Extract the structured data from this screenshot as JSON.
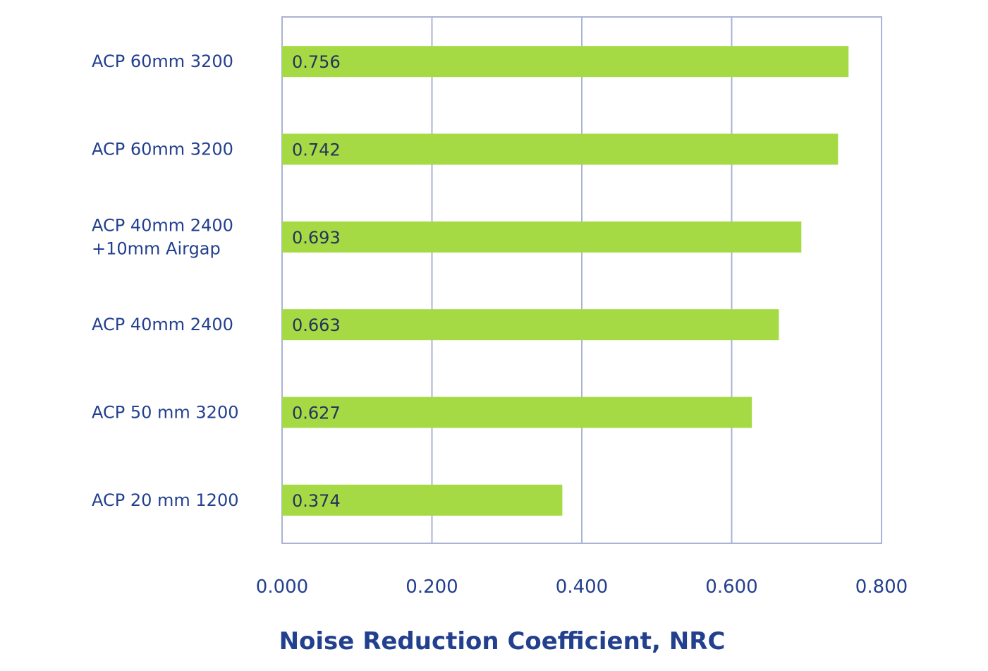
{
  "chart_data": {
    "type": "bar",
    "orientation": "horizontal",
    "categories": [
      [
        "ACP 60mm 3200"
      ],
      [
        "ACP 60mm 3200"
      ],
      [
        "ACP 40mm 2400",
        "+10mm Airgap"
      ],
      [
        "ACP 40mm 2400"
      ],
      [
        "ACP 50 mm 3200"
      ],
      [
        "ACP 20 mm 1200"
      ]
    ],
    "values": [
      0.756,
      0.742,
      0.693,
      0.663,
      0.627,
      0.374
    ],
    "value_labels": [
      "0.756",
      "0.742",
      "0.693",
      "0.663",
      "0.627",
      "0.374"
    ],
    "xlabel": "Noise Reduction Coefficient, NRC",
    "ylabel": "",
    "xlim": [
      0,
      0.8
    ],
    "xticks": [
      0.0,
      0.2,
      0.4,
      0.6,
      0.8
    ],
    "xtick_labels": [
      "0.000",
      "0.200",
      "0.400",
      "0.600",
      "0.800"
    ],
    "grid": "vertical",
    "legend": "none",
    "colors": {
      "bar": "#a5da44",
      "grid": "#aab3d6",
      "text": "#23408e",
      "data_label": "#24335c"
    }
  }
}
